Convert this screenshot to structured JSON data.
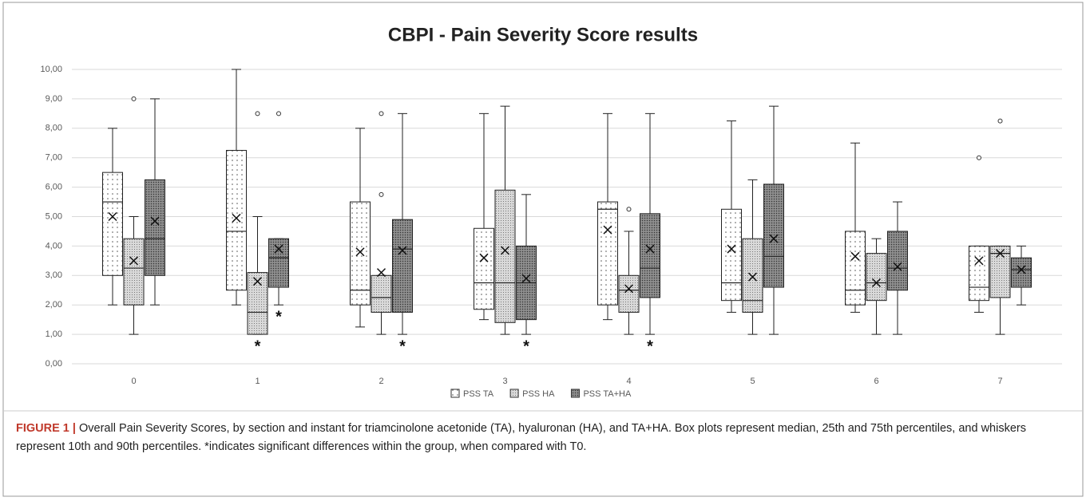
{
  "chart_data": {
    "type": "box",
    "title": "CBPI - Pain Severity Score results",
    "categories": [
      "0",
      "1",
      "2",
      "3",
      "4",
      "5",
      "6",
      "7"
    ],
    "ylim": [
      0,
      10
    ],
    "yticks": [
      {
        "value": 0,
        "label": "0,00"
      },
      {
        "value": 1,
        "label": "1,00"
      },
      {
        "value": 2,
        "label": "2,00"
      },
      {
        "value": 3,
        "label": "3,00"
      },
      {
        "value": 4,
        "label": "4,00"
      },
      {
        "value": 5,
        "label": "5,00"
      },
      {
        "value": 6,
        "label": "6,00"
      },
      {
        "value": 7,
        "label": "7,00"
      },
      {
        "value": 8,
        "label": "8,00"
      },
      {
        "value": 9,
        "label": "9,00"
      },
      {
        "value": 10,
        "label": "10,00"
      }
    ],
    "grid": true,
    "significance_marker": "*",
    "series": [
      {
        "name": "PSS TA",
        "color": "#ffffff",
        "pattern": "dots",
        "significant": [],
        "boxes": [
          {
            "low": 2.0,
            "q1": 3.0,
            "median": 5.5,
            "q3": 6.5,
            "high": 8.0,
            "mean": 5.0,
            "outliers": []
          },
          {
            "low": 2.0,
            "q1": 2.5,
            "median": 4.5,
            "q3": 7.25,
            "high": 10.0,
            "mean": 4.95,
            "outliers": []
          },
          {
            "low": 1.25,
            "q1": 2.0,
            "median": 2.5,
            "q3": 5.5,
            "high": 8.0,
            "mean": 3.8,
            "outliers": []
          },
          {
            "low": 1.5,
            "q1": 1.85,
            "median": 2.75,
            "q3": 4.6,
            "high": 8.5,
            "mean": 3.6,
            "outliers": []
          },
          {
            "low": 1.5,
            "q1": 2.0,
            "median": 5.25,
            "q3": 5.5,
            "high": 8.5,
            "mean": 4.55,
            "outliers": []
          },
          {
            "low": 1.75,
            "q1": 2.15,
            "median": 2.75,
            "q3": 5.25,
            "high": 8.25,
            "mean": 3.9,
            "outliers": []
          },
          {
            "low": 1.75,
            "q1": 2.0,
            "median": 2.5,
            "q3": 4.5,
            "high": 7.5,
            "mean": 3.65,
            "outliers": []
          },
          {
            "low": 1.75,
            "q1": 2.15,
            "median": 2.6,
            "q3": 4.0,
            "high": 4.0,
            "mean": 3.5,
            "outliers": [
              7.0
            ]
          }
        ]
      },
      {
        "name": "PSS HA",
        "color": "#d9d9d9",
        "pattern": "stipple",
        "significant": [
          1
        ],
        "boxes": [
          {
            "low": 1.0,
            "q1": 2.0,
            "median": 3.25,
            "q3": 4.25,
            "high": 5.0,
            "mean": 3.5,
            "outliers": [
              9.0
            ]
          },
          {
            "low": 1.0,
            "q1": 1.0,
            "median": 1.75,
            "q3": 3.1,
            "high": 5.0,
            "mean": 2.8,
            "outliers": [
              8.5
            ]
          },
          {
            "low": 1.0,
            "q1": 1.75,
            "median": 2.25,
            "q3": 3.0,
            "high": 3.0,
            "mean": 3.1,
            "outliers": [
              8.5,
              5.75
            ]
          },
          {
            "low": 1.0,
            "q1": 1.4,
            "median": 2.75,
            "q3": 5.9,
            "high": 8.75,
            "mean": 3.85,
            "outliers": []
          },
          {
            "low": 1.0,
            "q1": 1.75,
            "median": 2.5,
            "q3": 3.0,
            "high": 4.5,
            "mean": 2.55,
            "outliers": [
              5.25
            ]
          },
          {
            "low": 1.0,
            "q1": 1.75,
            "median": 2.15,
            "q3": 4.25,
            "high": 6.25,
            "mean": 2.95,
            "outliers": []
          },
          {
            "low": 1.0,
            "q1": 2.15,
            "median": 2.75,
            "q3": 3.75,
            "high": 4.25,
            "mean": 2.75,
            "outliers": []
          },
          {
            "low": 1.0,
            "q1": 2.25,
            "median": 3.75,
            "q3": 4.0,
            "high": 4.0,
            "mean": 3.75,
            "outliers": [
              8.25
            ]
          }
        ]
      },
      {
        "name": "PSS TA+HA",
        "color": "#808080",
        "pattern": "dense",
        "significant": [
          1,
          2,
          3,
          4
        ],
        "boxes": [
          {
            "low": 2.0,
            "q1": 3.0,
            "median": 4.25,
            "q3": 6.25,
            "high": 9.0,
            "mean": 4.85,
            "outliers": []
          },
          {
            "low": 2.0,
            "q1": 2.6,
            "median": 3.6,
            "q3": 4.25,
            "high": 4.25,
            "mean": 3.9,
            "outliers": [
              8.5
            ]
          },
          {
            "low": 1.0,
            "q1": 1.75,
            "median": 3.9,
            "q3": 4.9,
            "high": 8.5,
            "mean": 3.85,
            "outliers": []
          },
          {
            "low": 1.0,
            "q1": 1.5,
            "median": 2.75,
            "q3": 4.0,
            "high": 5.75,
            "mean": 2.9,
            "outliers": []
          },
          {
            "low": 1.0,
            "q1": 2.25,
            "median": 3.25,
            "q3": 5.1,
            "high": 8.5,
            "mean": 3.9,
            "outliers": []
          },
          {
            "low": 1.0,
            "q1": 2.6,
            "median": 3.65,
            "q3": 6.1,
            "high": 8.75,
            "mean": 4.25,
            "outliers": []
          },
          {
            "low": 1.0,
            "q1": 2.5,
            "median": 3.25,
            "q3": 4.5,
            "high": 5.5,
            "mean": 3.3,
            "outliers": []
          },
          {
            "low": 2.0,
            "q1": 2.6,
            "median": 3.2,
            "q3": 3.6,
            "high": 4.0,
            "mean": 3.2,
            "outliers": []
          }
        ]
      }
    ]
  },
  "caption": {
    "label": "FIGURE 1 |",
    "text": "Overall Pain Severity Scores, by section and instant for triamcinolone acetonide (TA), hyaluronan (HA), and TA+HA. Box plots represent median, 25th and 75th percentiles, and whiskers represent 10th and 90th percentiles. *indicates significant differences within the group, when compared with T0."
  }
}
